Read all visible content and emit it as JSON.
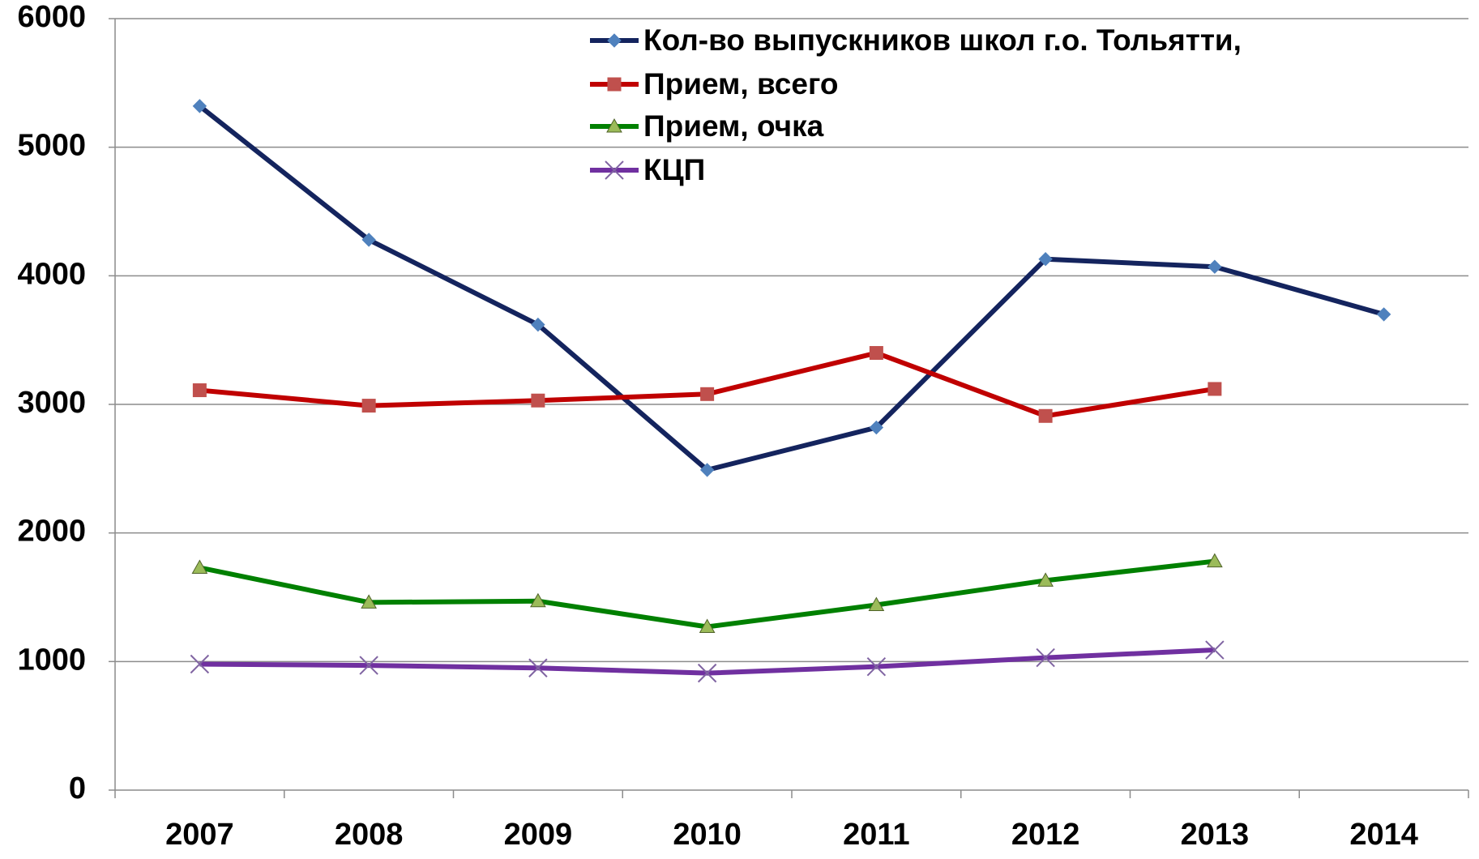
{
  "chart_data": {
    "type": "line",
    "categories": [
      "2007",
      "2008",
      "2009",
      "2010",
      "2011",
      "2012",
      "2013",
      "2014"
    ],
    "series": [
      {
        "name": "Кол-во выпускников школ г.о. Тольятти,",
        "color": "#14245e",
        "marker_color": "#4f81bd",
        "marker": "diamond",
        "values": [
          5320,
          4280,
          3620,
          2490,
          2820,
          4130,
          4070,
          3700
        ]
      },
      {
        "name": "Прием, всего",
        "color": "#c00000",
        "marker_color": "#c0504d",
        "marker": "square",
        "values": [
          3110,
          2990,
          3030,
          3080,
          3400,
          2910,
          3120,
          null
        ]
      },
      {
        "name": "Прием, очка",
        "color": "#008000",
        "marker_color": "#9bbb59",
        "marker": "triangle",
        "values": [
          1730,
          1460,
          1470,
          1270,
          1440,
          1630,
          1780,
          null
        ]
      },
      {
        "name": "КЦП",
        "color": "#7030a0",
        "marker_color": "#8064a2",
        "marker": "x",
        "values": [
          980,
          970,
          950,
          910,
          960,
          1030,
          1090,
          null
        ]
      }
    ],
    "ylim": [
      0,
      6000
    ],
    "yticks": [
      0,
      1000,
      2000,
      3000,
      4000,
      5000,
      6000
    ],
    "grid": true,
    "legend": "top"
  }
}
